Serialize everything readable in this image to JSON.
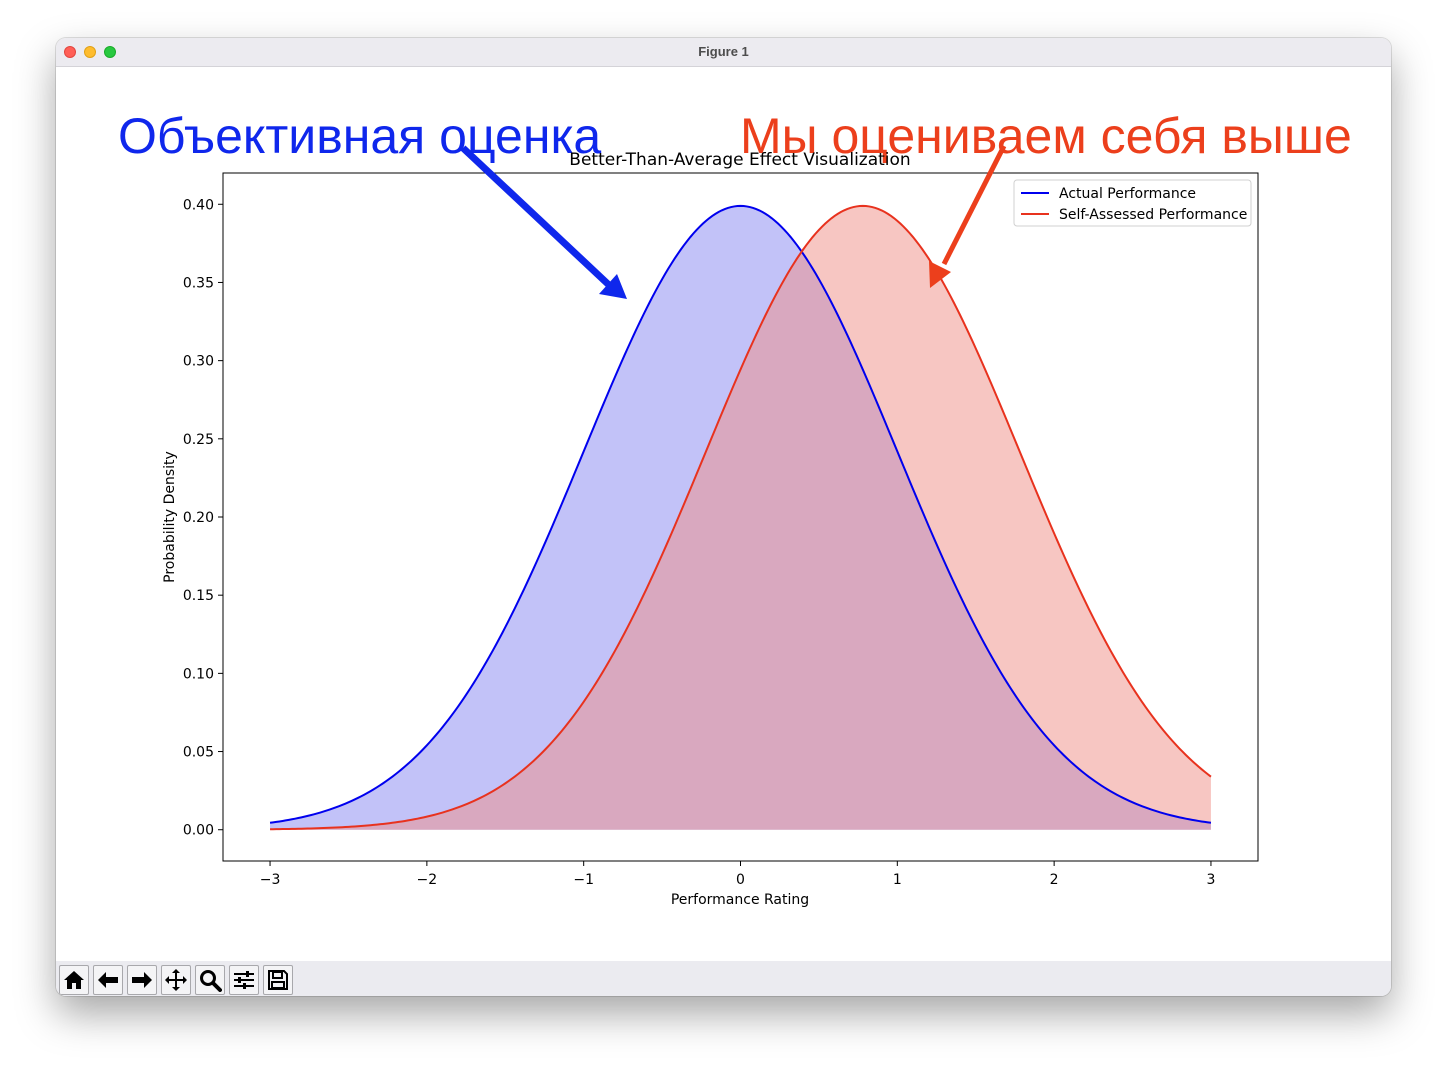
{
  "window": {
    "title": "Figure 1"
  },
  "annotations": {
    "left_text": "Объективная оценка",
    "right_text": "Мы оцениваем себя выше",
    "left_color": "#0f27ec",
    "right_color": "#ec3f1c"
  },
  "toolbar": {
    "buttons": [
      "home-icon",
      "back-icon",
      "forward-icon",
      "pan-icon",
      "zoom-icon",
      "configure-subplots-icon",
      "save-icon"
    ]
  },
  "chart_data": {
    "type": "area",
    "title": "Better-Than-Average Effect Visualization",
    "xlabel": "Performance Rating",
    "ylabel": "Probability Density",
    "xlim": [
      -3.3,
      3.3
    ],
    "ylim": [
      -0.02,
      0.42
    ],
    "x_domain": [
      -3,
      3
    ],
    "xticks": [
      -3,
      -2,
      -1,
      0,
      1,
      2,
      3
    ],
    "xtick_labels": [
      "−3",
      "−2",
      "−1",
      "0",
      "1",
      "2",
      "3"
    ],
    "yticks": [
      0.0,
      0.05,
      0.1,
      0.15,
      0.2,
      0.25,
      0.3,
      0.35,
      0.4
    ],
    "ytick_labels": [
      "0.00",
      "0.05",
      "0.10",
      "0.15",
      "0.20",
      "0.25",
      "0.30",
      "0.35",
      "0.40"
    ],
    "legend_position": "top-right",
    "grid": false,
    "series": [
      {
        "name": "Actual Performance",
        "distribution": "normal",
        "mean": 0.0,
        "std": 1.0,
        "line_color": "#0000ee",
        "fill_color": "#8080f0",
        "fill_opacity": 0.48
      },
      {
        "name": "Self-Assessed Performance",
        "distribution": "normal",
        "mean": 0.78,
        "std": 1.0,
        "line_color": "#e8321e",
        "fill_color": "#ef8e86",
        "fill_opacity": 0.5
      }
    ]
  }
}
